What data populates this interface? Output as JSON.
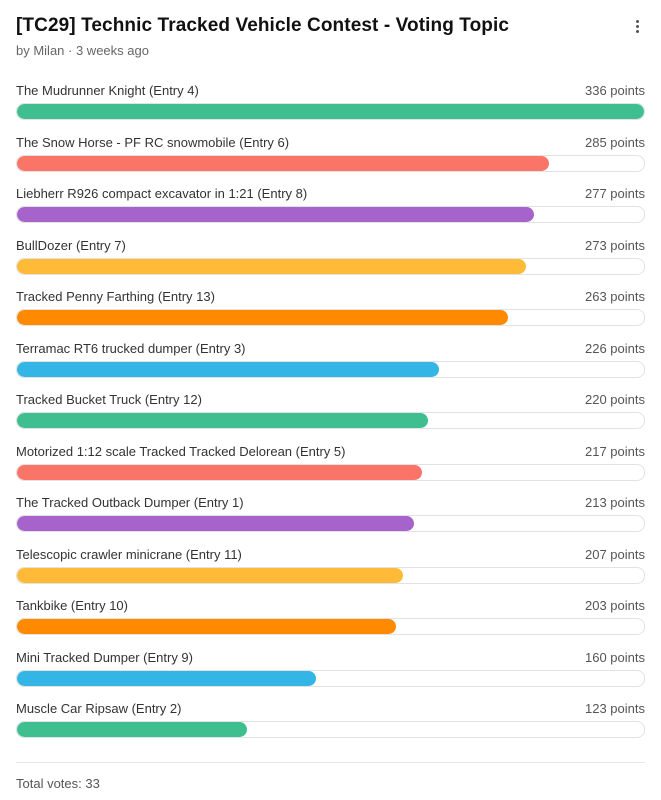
{
  "topic": {
    "title": "[TC29] Technic Tracked Vehicle Contest - Voting Topic",
    "meta": "by Milan · 3 weeks ago"
  },
  "poll": {
    "max_points": 336,
    "entries": [
      {
        "label": "The Mudrunner Knight (Entry 4)",
        "points": 336,
        "points_text": "336 points",
        "color": "#3fbf8f"
      },
      {
        "label": "The Snow Horse - PF RC snowmobile (Entry 6)",
        "points": 285,
        "points_text": "285 points",
        "color": "#fa7467"
      },
      {
        "label": "Liebherr R926 compact excavator in 1:21 (Entry 8)",
        "points": 277,
        "points_text": "277 points",
        "color": "#a663cc"
      },
      {
        "label": "BullDozer (Entry 7)",
        "points": 273,
        "points_text": "273 points",
        "color": "#ffbb38"
      },
      {
        "label": "Tracked Penny Farthing (Entry 13)",
        "points": 263,
        "points_text": "263 points",
        "color": "#ff8a00"
      },
      {
        "label": "Terramac RT6 trucked dumper (Entry 3)",
        "points": 226,
        "points_text": "226 points",
        "color": "#33b5e5"
      },
      {
        "label": "Tracked Bucket Truck (Entry 12)",
        "points": 220,
        "points_text": "220 points",
        "color": "#3fbf8f"
      },
      {
        "label": "Motorized 1:12 scale Tracked Tracked Delorean (Entry 5)",
        "points": 217,
        "points_text": "217 points",
        "color": "#fa7467"
      },
      {
        "label": "The Tracked Outback Dumper (Entry 1)",
        "points": 213,
        "points_text": "213 points",
        "color": "#a663cc"
      },
      {
        "label": "Telescopic crawler minicrane (Entry 11)",
        "points": 207,
        "points_text": "207 points",
        "color": "#ffbb38"
      },
      {
        "label": "Tankbike (Entry 10)",
        "points": 203,
        "points_text": "203 points",
        "color": "#ff8a00"
      },
      {
        "label": "Mini Tracked Dumper (Entry 9)",
        "points": 160,
        "points_text": "160 points",
        "color": "#33b5e5"
      },
      {
        "label": "Muscle Car Ripsaw (Entry 2)",
        "points": 123,
        "points_text": "123 points",
        "color": "#3fbf8f"
      }
    ],
    "total_votes": "Total votes: 33"
  }
}
